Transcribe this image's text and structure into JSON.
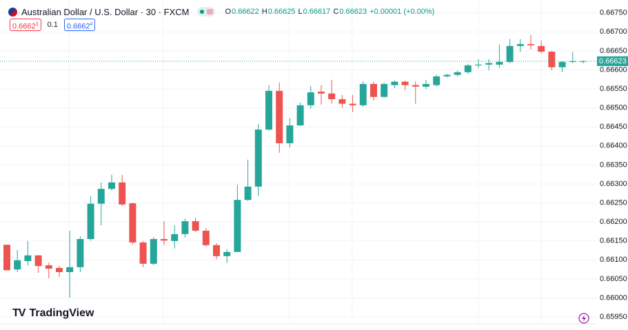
{
  "chart_data": {
    "type": "candlestick",
    "title": "Australian Dollar / U.S. Dollar · 30 · FXCM",
    "ohlc_labels": [
      "O",
      "H",
      "L",
      "C"
    ],
    "change": "+0.00001 (+0.00%)",
    "sell": {
      "price": "0.6662",
      "last_digit": "3"
    },
    "spread": 0.1,
    "buy": {
      "price": "0.6662",
      "last_digit": "4"
    },
    "brand": "TradingView",
    "up_color": "#26a69a",
    "down_color": "#ef5350",
    "grid": true,
    "ylim": [
      0.65932,
      0.66784
    ],
    "yticks": [
      {
        "value": 0.6595,
        "label": "0.65950"
      },
      {
        "value": 0.66,
        "label": "0.66000"
      },
      {
        "value": 0.6605,
        "label": "0.66050"
      },
      {
        "value": 0.661,
        "label": "0.66100"
      },
      {
        "value": 0.6615,
        "label": "0.66150"
      },
      {
        "value": 0.662,
        "label": "0.66200"
      },
      {
        "value": 0.6625,
        "label": "0.66250"
      },
      {
        "value": 0.663,
        "label": "0.66300"
      },
      {
        "value": 0.6635,
        "label": "0.66350"
      },
      {
        "value": 0.664,
        "label": "0.66400"
      },
      {
        "value": 0.6645,
        "label": "0.66450"
      },
      {
        "value": 0.665,
        "label": "0.66500"
      },
      {
        "value": 0.6655,
        "label": "0.66550"
      },
      {
        "value": 0.666,
        "label": "0.66600"
      },
      {
        "value": 0.6665,
        "label": "0.66650"
      },
      {
        "value": 0.667,
        "label": "0.66700"
      },
      {
        "value": 0.6675,
        "label": "0.66750"
      }
    ],
    "open": [
      0.6614,
      0.66075,
      0.66097,
      0.66112,
      0.66086,
      0.66079,
      0.66068,
      0.66081,
      0.66155,
      0.66248,
      0.66287,
      0.66304,
      0.66249,
      0.66146,
      0.6609,
      0.66155,
      0.6615,
      0.66168,
      0.66202,
      0.66177,
      0.66139,
      0.6611,
      0.66121,
      0.66258,
      0.66293,
      0.66443,
      0.66545,
      0.66407,
      0.66454,
      0.66507,
      0.66543,
      0.66538,
      0.66523,
      0.66511,
      0.66507,
      0.66563,
      0.66529,
      0.6656,
      0.66569,
      0.6656,
      0.66556,
      0.6656,
      0.66583,
      0.66587,
      0.66594,
      0.66612,
      0.66614,
      0.66614,
      0.66621,
      0.66663,
      0.66668,
      0.66663,
      0.66648,
      0.66607,
      0.66621,
      0.66622
    ],
    "high": [
      0.6614,
      0.66126,
      0.6615,
      0.66113,
      0.66093,
      0.66084,
      0.66177,
      0.66162,
      0.66268,
      0.66304,
      0.66324,
      0.66324,
      0.66251,
      0.6615,
      0.6616,
      0.66202,
      0.66191,
      0.66209,
      0.66211,
      0.66184,
      0.66144,
      0.66128,
      0.66298,
      0.66364,
      0.66458,
      0.6656,
      0.66567,
      0.66473,
      0.66514,
      0.66558,
      0.6656,
      0.66574,
      0.66534,
      0.66534,
      0.6657,
      0.66569,
      0.66567,
      0.66572,
      0.66572,
      0.6657,
      0.66574,
      0.66587,
      0.6659,
      0.66598,
      0.66616,
      0.66628,
      0.66628,
      0.66667,
      0.66681,
      0.66681,
      0.66692,
      0.66677,
      0.6665,
      0.66623,
      0.66647,
      0.66625
    ],
    "low": [
      0.66073,
      0.66068,
      0.66086,
      0.66066,
      0.66052,
      0.66055,
      0.66001,
      0.66068,
      0.66151,
      0.66191,
      0.66282,
      0.66242,
      0.6614,
      0.66081,
      0.66086,
      0.66139,
      0.6613,
      0.66159,
      0.66173,
      0.66135,
      0.66102,
      0.66092,
      0.66121,
      0.66255,
      0.66269,
      0.6644,
      0.66382,
      0.66396,
      0.66453,
      0.66498,
      0.66509,
      0.66511,
      0.665,
      0.66489,
      0.66503,
      0.6652,
      0.66527,
      0.66552,
      0.66547,
      0.66511,
      0.6655,
      0.66556,
      0.6658,
      0.66583,
      0.6659,
      0.66605,
      0.66599,
      0.66605,
      0.66618,
      0.66648,
      0.66654,
      0.66643,
      0.66599,
      0.66594,
      0.66618,
      0.66617
    ],
    "close": [
      0.66073,
      0.66099,
      0.66112,
      0.66084,
      0.66077,
      0.66068,
      0.66081,
      0.66155,
      0.66248,
      0.66287,
      0.66304,
      0.66246,
      0.66146,
      0.6609,
      0.66155,
      0.66151,
      0.66168,
      0.66202,
      0.66177,
      0.66139,
      0.6611,
      0.66121,
      0.66258,
      0.66293,
      0.66443,
      0.66545,
      0.66407,
      0.66454,
      0.66507,
      0.66541,
      0.66538,
      0.66523,
      0.66511,
      0.66507,
      0.66563,
      0.66529,
      0.66563,
      0.66569,
      0.6656,
      0.66556,
      0.66563,
      0.66583,
      0.66587,
      0.66594,
      0.66612,
      0.66614,
      0.66618,
      0.66621,
      0.66663,
      0.66668,
      0.66665,
      0.66648,
      0.66607,
      0.66621,
      0.66623,
      0.66623
    ]
  }
}
